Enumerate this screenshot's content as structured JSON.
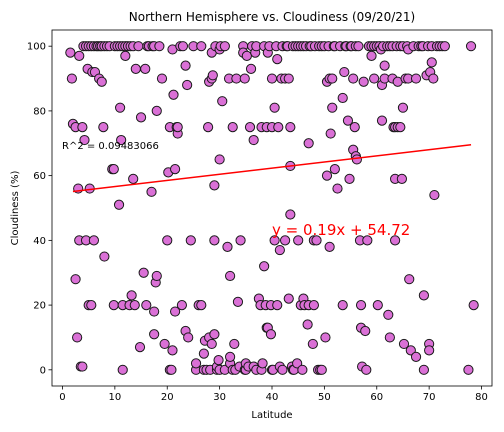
{
  "chart_data": {
    "type": "scatter",
    "title": "Northern Hemisphere vs. Cloudiness (09/20/21)",
    "xlabel": "Latitude",
    "ylabel": "Cloudiness (%)",
    "xlim": [
      -2,
      82
    ],
    "ylim": [
      -5,
      105
    ],
    "xticks": [
      0,
      10,
      20,
      30,
      40,
      50,
      60,
      70,
      80
    ],
    "yticks": [
      0,
      20,
      40,
      60,
      80,
      100
    ],
    "grid": false,
    "marker_color": "#da70d6",
    "marker_edge": "#1a1a1a",
    "regression": {
      "slope": 0.19,
      "intercept": 54.72,
      "x_range": [
        2,
        78
      ],
      "color": "#ff0000",
      "equation": "y = 0.19x + 54.72",
      "r_squared": "R^2 = 0.09483066"
    },
    "points": [
      [
        1.5,
        98
      ],
      [
        1.8,
        90
      ],
      [
        2,
        76
      ],
      [
        2.5,
        75
      ],
      [
        2.5,
        28
      ],
      [
        2.8,
        10
      ],
      [
        3,
        56
      ],
      [
        3.2,
        40
      ],
      [
        3.2,
        97
      ],
      [
        3.5,
        1
      ],
      [
        3.8,
        75
      ],
      [
        3.8,
        1
      ],
      [
        4,
        100
      ],
      [
        4.2,
        71
      ],
      [
        4.5,
        40
      ],
      [
        4.5,
        100
      ],
      [
        4.8,
        93
      ],
      [
        5,
        100
      ],
      [
        5,
        20
      ],
      [
        5.2,
        56
      ],
      [
        5.5,
        20
      ],
      [
        5.5,
        100
      ],
      [
        5.7,
        92
      ],
      [
        6,
        100
      ],
      [
        6,
        40
      ],
      [
        6.2,
        92
      ],
      [
        6.5,
        100
      ],
      [
        6.8,
        100
      ],
      [
        7,
        90
      ],
      [
        7.2,
        100
      ],
      [
        7.5,
        100
      ],
      [
        7.5,
        89
      ],
      [
        7.8,
        75
      ],
      [
        8,
        100
      ],
      [
        8,
        35
      ],
      [
        8.5,
        100
      ],
      [
        9,
        100
      ],
      [
        9.5,
        62
      ],
      [
        9.8,
        62
      ],
      [
        9.8,
        20
      ],
      [
        10,
        100
      ],
      [
        10.5,
        100
      ],
      [
        10.8,
        51
      ],
      [
        11,
        81
      ],
      [
        11,
        100
      ],
      [
        11.2,
        71
      ],
      [
        11.5,
        100
      ],
      [
        11.5,
        20
      ],
      [
        11.5,
        0
      ],
      [
        12,
        97
      ],
      [
        12,
        100
      ],
      [
        12.5,
        100
      ],
      [
        12.8,
        20
      ],
      [
        13,
        100
      ],
      [
        13.2,
        23
      ],
      [
        13.5,
        100
      ],
      [
        13.5,
        59
      ],
      [
        13.8,
        20
      ],
      [
        14,
        93
      ],
      [
        14.5,
        100
      ],
      [
        14.8,
        7
      ],
      [
        15,
        78
      ],
      [
        15.5,
        30
      ],
      [
        15.8,
        93
      ],
      [
        16,
        20
      ],
      [
        16.2,
        100
      ],
      [
        16.5,
        100
      ],
      [
        17,
        55
      ],
      [
        17.2,
        100
      ],
      [
        17.5,
        100
      ],
      [
        17.5,
        18
      ],
      [
        17.5,
        11
      ],
      [
        17.8,
        27
      ],
      [
        18,
        29
      ],
      [
        18,
        80
      ],
      [
        18.5,
        100
      ],
      [
        19,
        90
      ],
      [
        19.5,
        8
      ],
      [
        20,
        40
      ],
      [
        20.2,
        61
      ],
      [
        20.5,
        75
      ],
      [
        20.5,
        0
      ],
      [
        20.8,
        0
      ],
      [
        21,
        6
      ],
      [
        21,
        99
      ],
      [
        21.2,
        85
      ],
      [
        21.5,
        62
      ],
      [
        21.5,
        18
      ],
      [
        21.8,
        75
      ],
      [
        22,
        73
      ],
      [
        22,
        75
      ],
      [
        22.5,
        100
      ],
      [
        22.8,
        20
      ],
      [
        23,
        100
      ],
      [
        23.5,
        12
      ],
      [
        23.5,
        94
      ],
      [
        23.8,
        88
      ],
      [
        24,
        10
      ],
      [
        24.5,
        40
      ],
      [
        25,
        100
      ],
      [
        25.5,
        0
      ],
      [
        25.5,
        2
      ],
      [
        26,
        20
      ],
      [
        26.5,
        20
      ],
      [
        26.5,
        100
      ],
      [
        27,
        5
      ],
      [
        27,
        0
      ],
      [
        27.2,
        9
      ],
      [
        27.5,
        0
      ],
      [
        27.8,
        75
      ],
      [
        28,
        10
      ],
      [
        28,
        89
      ],
      [
        28.2,
        0
      ],
      [
        28.5,
        8
      ],
      [
        28.5,
        98
      ],
      [
        28.5,
        90
      ],
      [
        28.7,
        91
      ],
      [
        29,
        57
      ],
      [
        29,
        40
      ],
      [
        29,
        11
      ],
      [
        29.2,
        100
      ],
      [
        29.5,
        0
      ],
      [
        29.5,
        1
      ],
      [
        29.8,
        3
      ],
      [
        30,
        0
      ],
      [
        30,
        99
      ],
      [
        30,
        65
      ],
      [
        30.2,
        100
      ],
      [
        30.5,
        83
      ],
      [
        31,
        100
      ],
      [
        31,
        0
      ],
      [
        31.5,
        38
      ],
      [
        31.8,
        90
      ],
      [
        32,
        2
      ],
      [
        32,
        4
      ],
      [
        32,
        29
      ],
      [
        32.5,
        0
      ],
      [
        32.5,
        75
      ],
      [
        32.8,
        8
      ],
      [
        33,
        0
      ],
      [
        33.2,
        90
      ],
      [
        33.5,
        21
      ],
      [
        33.8,
        1
      ],
      [
        34,
        40
      ],
      [
        34.5,
        100
      ],
      [
        34.5,
        98
      ],
      [
        34.8,
        90
      ],
      [
        34.8,
        0
      ],
      [
        35,
        0
      ],
      [
        35,
        2
      ],
      [
        35.2,
        97
      ],
      [
        35.5,
        1
      ],
      [
        35.8,
        75
      ],
      [
        36,
        93
      ],
      [
        36.2,
        100
      ],
      [
        36.5,
        1
      ],
      [
        36.5,
        71
      ],
      [
        36.8,
        98
      ],
      [
        37,
        0
      ],
      [
        37,
        100
      ],
      [
        37.5,
        22
      ],
      [
        37.8,
        20
      ],
      [
        38,
        75
      ],
      [
        38,
        0
      ],
      [
        38.2,
        2
      ],
      [
        38.5,
        100
      ],
      [
        38.5,
        32
      ],
      [
        38.8,
        20
      ],
      [
        39,
        13
      ],
      [
        39,
        75
      ],
      [
        39.2,
        98
      ],
      [
        39.2,
        13
      ],
      [
        39.5,
        100
      ],
      [
        39.8,
        20
      ],
      [
        39.8,
        11
      ],
      [
        40,
        75
      ],
      [
        40,
        90
      ],
      [
        40,
        0
      ],
      [
        40.2,
        0
      ],
      [
        40.5,
        40
      ],
      [
        40.5,
        81
      ],
      [
        40.8,
        100
      ],
      [
        41,
        20
      ],
      [
        41,
        96
      ],
      [
        41.2,
        75
      ],
      [
        41.5,
        1
      ],
      [
        41.5,
        37
      ],
      [
        41.8,
        90
      ],
      [
        42,
        0
      ],
      [
        42,
        100
      ],
      [
        42.5,
        40
      ],
      [
        42.5,
        90
      ],
      [
        42.8,
        100
      ],
      [
        43,
        100
      ],
      [
        43.2,
        22
      ],
      [
        43.2,
        90
      ],
      [
        43.5,
        63
      ],
      [
        43.5,
        48
      ],
      [
        43.5,
        75
      ],
      [
        43.8,
        1
      ],
      [
        44,
        100
      ],
      [
        44,
        0
      ],
      [
        44.2,
        0
      ],
      [
        44.5,
        100
      ],
      [
        44.8,
        2
      ],
      [
        45,
        100
      ],
      [
        45,
        40
      ],
      [
        45.5,
        20
      ],
      [
        45.5,
        100
      ],
      [
        45.8,
        0
      ],
      [
        46,
        22
      ],
      [
        46,
        100
      ],
      [
        46.2,
        20
      ],
      [
        46.5,
        100
      ],
      [
        46.8,
        14
      ],
      [
        47,
        70
      ],
      [
        47,
        20
      ],
      [
        47.2,
        100
      ],
      [
        47.5,
        100
      ],
      [
        47.8,
        8
      ],
      [
        48,
        20
      ],
      [
        48,
        40
      ],
      [
        48.2,
        100
      ],
      [
        48.5,
        40
      ],
      [
        48.8,
        0
      ],
      [
        49,
        100
      ],
      [
        49.2,
        0
      ],
      [
        49.5,
        100
      ],
      [
        49.5,
        0
      ],
      [
        50,
        100
      ],
      [
        50.2,
        10
      ],
      [
        50.5,
        89
      ],
      [
        50.5,
        60
      ],
      [
        50.8,
        100
      ],
      [
        51,
        90
      ],
      [
        51,
        38
      ],
      [
        51.2,
        73
      ],
      [
        51.5,
        81
      ],
      [
        51.5,
        90
      ],
      [
        51.8,
        100
      ],
      [
        52,
        100
      ],
      [
        52,
        62
      ],
      [
        52.5,
        56
      ],
      [
        53,
        100
      ],
      [
        53.5,
        20
      ],
      [
        53.5,
        84
      ],
      [
        53.8,
        92
      ],
      [
        54,
        100
      ],
      [
        54.2,
        100
      ],
      [
        54.5,
        77
      ],
      [
        54.8,
        59
      ],
      [
        55,
        100
      ],
      [
        55.2,
        100
      ],
      [
        55.5,
        68
      ],
      [
        55.5,
        90
      ],
      [
        55.8,
        75
      ],
      [
        56,
        66
      ],
      [
        56,
        100
      ],
      [
        56.2,
        65
      ],
      [
        56.5,
        100
      ],
      [
        56.8,
        40
      ],
      [
        57,
        20
      ],
      [
        57,
        13
      ],
      [
        57.2,
        1
      ],
      [
        57.5,
        89
      ],
      [
        57.8,
        12
      ],
      [
        58,
        0
      ],
      [
        58.2,
        40
      ],
      [
        58.5,
        100
      ],
      [
        59,
        100
      ],
      [
        59,
        97
      ],
      [
        59.5,
        100
      ],
      [
        59.5,
        90
      ],
      [
        60,
        100
      ],
      [
        60.2,
        20
      ],
      [
        60.5,
        100
      ],
      [
        60.8,
        99
      ],
      [
        61,
        77
      ],
      [
        61,
        88
      ],
      [
        61.2,
        100
      ],
      [
        61.5,
        94
      ],
      [
        61.5,
        90
      ],
      [
        62,
        100
      ],
      [
        62.2,
        17
      ],
      [
        62.5,
        100
      ],
      [
        62.5,
        10
      ],
      [
        63,
        90
      ],
      [
        63,
        100
      ],
      [
        63.2,
        75
      ],
      [
        63.5,
        75
      ],
      [
        63.5,
        59
      ],
      [
        63.5,
        40
      ],
      [
        63.8,
        100
      ],
      [
        64,
        89
      ],
      [
        64,
        75
      ],
      [
        64.5,
        100
      ],
      [
        64.5,
        75
      ],
      [
        64.8,
        59
      ],
      [
        65,
        100
      ],
      [
        65,
        81
      ],
      [
        65.2,
        8
      ],
      [
        65.5,
        90
      ],
      [
        65.8,
        100
      ],
      [
        66,
        99
      ],
      [
        66,
        90
      ],
      [
        66.2,
        28
      ],
      [
        66.5,
        6
      ],
      [
        67,
        100
      ],
      [
        67.5,
        4
      ],
      [
        67.5,
        90
      ],
      [
        68,
        100
      ],
      [
        68.5,
        100
      ],
      [
        68.8,
        100
      ],
      [
        69,
        23
      ],
      [
        69,
        0
      ],
      [
        69.5,
        91
      ],
      [
        69.8,
        100
      ],
      [
        70,
        8
      ],
      [
        70,
        6
      ],
      [
        70.2,
        92
      ],
      [
        70.5,
        95
      ],
      [
        70.5,
        100
      ],
      [
        70.8,
        90
      ],
      [
        71,
        54
      ],
      [
        71.5,
        100
      ],
      [
        72,
        100
      ],
      [
        72.5,
        100
      ],
      [
        73,
        100
      ],
      [
        77.5,
        0
      ],
      [
        78,
        100
      ],
      [
        78.5,
        20
      ]
    ]
  }
}
